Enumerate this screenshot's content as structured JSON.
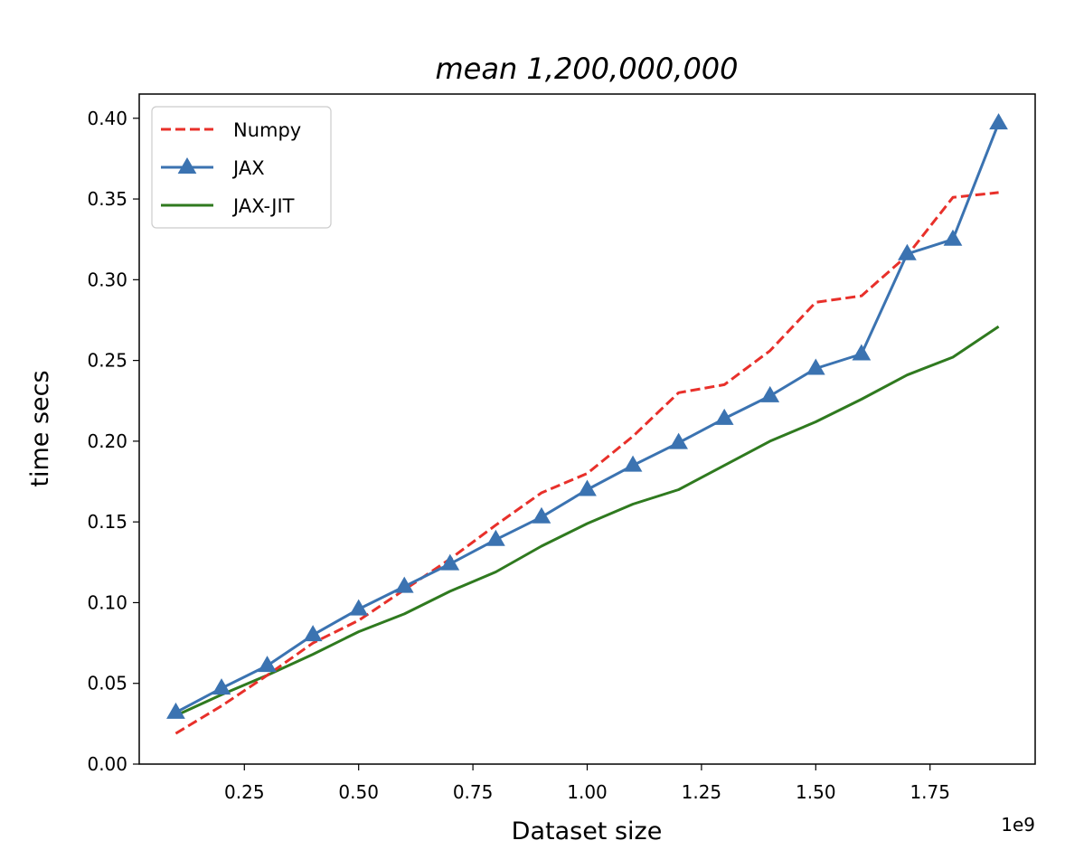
{
  "chart_data": {
    "type": "line",
    "title": "mean 1,200,000,000",
    "xlabel": "Dataset size",
    "ylabel": "time secs",
    "x_offset_label": "1e9",
    "xlim": [
      0.02,
      1.98
    ],
    "ylim": [
      0.0,
      0.415
    ],
    "x_ticks": [
      0.25,
      0.5,
      0.75,
      1.0,
      1.25,
      1.5,
      1.75
    ],
    "x_tick_labels": [
      "0.25",
      "0.50",
      "0.75",
      "1.00",
      "1.25",
      "1.50",
      "1.75"
    ],
    "y_ticks": [
      0.0,
      0.05,
      0.1,
      0.15,
      0.2,
      0.25,
      0.3,
      0.35,
      0.4
    ],
    "y_tick_labels": [
      "0.00",
      "0.05",
      "0.10",
      "0.15",
      "0.20",
      "0.25",
      "0.30",
      "0.35",
      "0.40"
    ],
    "x": [
      0.1,
      0.2,
      0.3,
      0.4,
      0.5,
      0.6,
      0.7,
      0.8,
      0.9,
      1.0,
      1.1,
      1.2,
      1.3,
      1.4,
      1.5,
      1.6,
      1.7,
      1.8,
      1.9
    ],
    "grid": false,
    "legend": "top-left",
    "series": [
      {
        "name": "Numpy",
        "color": "#e8302a",
        "style": "dashed",
        "marker": "none",
        "values": [
          0.019,
          0.036,
          0.055,
          0.075,
          0.089,
          0.108,
          0.127,
          0.148,
          0.168,
          0.18,
          0.203,
          0.23,
          0.235,
          0.256,
          0.286,
          0.29,
          0.315,
          0.351,
          0.354
        ]
      },
      {
        "name": "JAX",
        "color": "#3b73b1",
        "style": "solid",
        "marker": "triangle",
        "values": [
          0.032,
          0.047,
          0.061,
          0.08,
          0.096,
          0.11,
          0.124,
          0.139,
          0.153,
          0.17,
          0.185,
          0.199,
          0.214,
          0.228,
          0.245,
          0.254,
          0.316,
          0.325,
          0.397
        ]
      },
      {
        "name": "JAX-JIT",
        "color": "#2f7a1f",
        "style": "solid",
        "marker": "none",
        "values": [
          0.03,
          0.043,
          0.055,
          0.068,
          0.082,
          0.093,
          0.107,
          0.119,
          0.135,
          0.149,
          0.161,
          0.17,
          0.185,
          0.2,
          0.212,
          0.226,
          0.241,
          0.252,
          0.271
        ]
      }
    ]
  }
}
